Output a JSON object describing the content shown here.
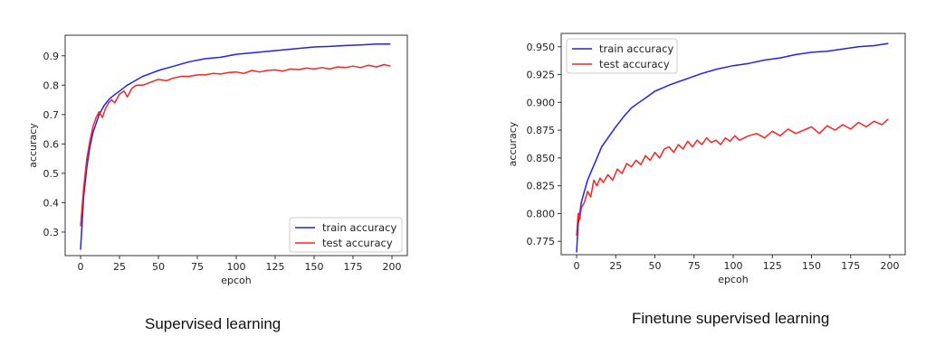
{
  "chart_data": [
    {
      "type": "line",
      "title": "",
      "caption": "Supervised learning",
      "xlabel": "epcoh",
      "ylabel": "accuracy",
      "xlim": [
        0,
        200
      ],
      "ylim": [
        0.22,
        0.97
      ],
      "xticks": [
        0,
        25,
        50,
        75,
        100,
        125,
        150,
        175,
        200
      ],
      "yticks": [
        0.3,
        0.4,
        0.5,
        0.6,
        0.7,
        0.8,
        0.9
      ],
      "ytick_labels": [
        "0.3",
        "0.4",
        "0.5",
        "0.6",
        "0.7",
        "0.8",
        "0.9"
      ],
      "legend": "lower-right",
      "grid": false,
      "series": [
        {
          "name": "train accuracy",
          "color": "#1f1fff",
          "x": [
            0,
            2,
            4,
            6,
            8,
            10,
            12,
            15,
            18,
            20,
            25,
            30,
            35,
            40,
            45,
            50,
            60,
            70,
            80,
            90,
            100,
            110,
            120,
            130,
            140,
            150,
            160,
            170,
            180,
            190,
            199
          ],
          "y": [
            0.24,
            0.42,
            0.52,
            0.59,
            0.64,
            0.67,
            0.7,
            0.73,
            0.75,
            0.76,
            0.78,
            0.8,
            0.815,
            0.83,
            0.84,
            0.85,
            0.865,
            0.88,
            0.89,
            0.895,
            0.905,
            0.91,
            0.915,
            0.92,
            0.925,
            0.93,
            0.932,
            0.935,
            0.937,
            0.94,
            0.94
          ]
        },
        {
          "name": "test accuracy",
          "color": "#ff2020",
          "x": [
            0,
            2,
            4,
            6,
            8,
            10,
            12,
            14,
            16,
            18,
            20,
            22,
            25,
            28,
            30,
            33,
            36,
            40,
            45,
            50,
            55,
            60,
            65,
            70,
            75,
            80,
            85,
            90,
            95,
            100,
            105,
            110,
            115,
            120,
            125,
            130,
            135,
            140,
            145,
            150,
            155,
            160,
            165,
            170,
            175,
            180,
            185,
            190,
            195,
            199
          ],
          "y": [
            0.32,
            0.45,
            0.55,
            0.61,
            0.66,
            0.69,
            0.71,
            0.69,
            0.72,
            0.74,
            0.75,
            0.74,
            0.77,
            0.78,
            0.76,
            0.79,
            0.8,
            0.8,
            0.81,
            0.82,
            0.815,
            0.825,
            0.83,
            0.83,
            0.835,
            0.835,
            0.84,
            0.838,
            0.843,
            0.845,
            0.84,
            0.85,
            0.845,
            0.85,
            0.852,
            0.848,
            0.855,
            0.853,
            0.858,
            0.855,
            0.86,
            0.855,
            0.862,
            0.86,
            0.865,
            0.86,
            0.868,
            0.862,
            0.87,
            0.865
          ]
        }
      ]
    },
    {
      "type": "line",
      "title": "",
      "caption": "Finetune supervised learning",
      "xlabel": "epcoh",
      "ylabel": "accuracy",
      "xlim": [
        0,
        200
      ],
      "ylim": [
        0.763,
        0.962
      ],
      "xticks": [
        0,
        25,
        50,
        75,
        100,
        125,
        150,
        175,
        200
      ],
      "yticks": [
        0.775,
        0.8,
        0.825,
        0.85,
        0.875,
        0.9,
        0.925,
        0.95
      ],
      "ytick_labels": [
        "0.775",
        "0.800",
        "0.825",
        "0.850",
        "0.875",
        "0.900",
        "0.925",
        "0.950"
      ],
      "legend": "upper-left",
      "grid": false,
      "series": [
        {
          "name": "train accuracy",
          "color": "#1f1fff",
          "x": [
            0,
            1,
            2,
            3,
            5,
            7,
            10,
            13,
            16,
            20,
            25,
            30,
            35,
            40,
            45,
            50,
            55,
            60,
            70,
            80,
            90,
            100,
            110,
            120,
            130,
            140,
            150,
            160,
            170,
            180,
            190,
            199
          ],
          "y": [
            0.765,
            0.79,
            0.8,
            0.81,
            0.82,
            0.83,
            0.84,
            0.85,
            0.86,
            0.868,
            0.878,
            0.887,
            0.895,
            0.9,
            0.905,
            0.91,
            0.913,
            0.916,
            0.921,
            0.926,
            0.93,
            0.933,
            0.935,
            0.938,
            0.94,
            0.943,
            0.945,
            0.946,
            0.948,
            0.95,
            0.951,
            0.953
          ]
        },
        {
          "name": "test accuracy",
          "color": "#ff2020",
          "x": [
            0,
            1,
            2,
            3,
            5,
            7,
            9,
            11,
            13,
            15,
            17,
            20,
            23,
            26,
            29,
            32,
            35,
            38,
            41,
            44,
            47,
            50,
            53,
            56,
            59,
            62,
            65,
            68,
            71,
            74,
            77,
            80,
            83,
            86,
            89,
            92,
            95,
            98,
            101,
            104,
            107,
            110,
            115,
            120,
            125,
            130,
            135,
            140,
            145,
            150,
            155,
            160,
            165,
            170,
            175,
            180,
            185,
            190,
            195,
            199
          ],
          "y": [
            0.78,
            0.8,
            0.795,
            0.805,
            0.81,
            0.82,
            0.815,
            0.83,
            0.825,
            0.832,
            0.828,
            0.835,
            0.83,
            0.84,
            0.836,
            0.845,
            0.842,
            0.848,
            0.844,
            0.852,
            0.848,
            0.855,
            0.85,
            0.858,
            0.86,
            0.855,
            0.862,
            0.858,
            0.865,
            0.86,
            0.866,
            0.862,
            0.868,
            0.864,
            0.866,
            0.862,
            0.868,
            0.865,
            0.87,
            0.866,
            0.868,
            0.87,
            0.872,
            0.868,
            0.874,
            0.87,
            0.876,
            0.872,
            0.875,
            0.878,
            0.872,
            0.879,
            0.875,
            0.88,
            0.876,
            0.882,
            0.878,
            0.883,
            0.88,
            0.885
          ]
        }
      ]
    }
  ]
}
